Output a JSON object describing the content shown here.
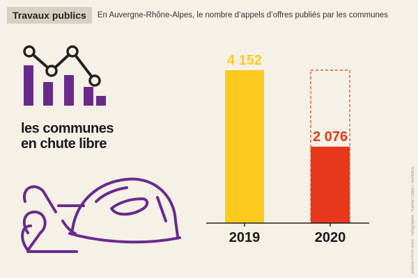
{
  "header": {
    "tag": "Travaux publics",
    "subtitle": "En Auvergne-Rhône-Alpes, le nombre d’appels d’offres publiés par les communes"
  },
  "caption": {
    "line1": "les communes",
    "line2": "en chute libre"
  },
  "source": "Source FRTP Aura · Infographie : Karine Collet / Territorial",
  "colors": {
    "background": "#f5f1e6",
    "bar_2019": "#fdcb1f",
    "bar_2020": "#e8381b",
    "icon": "#6a2a8c",
    "dashed_outline": "#e8381b"
  },
  "icons": [
    "line-chart-icon",
    "hard-hat-icon",
    "rolled-plan-icon"
  ],
  "chart_data": {
    "type": "bar",
    "categories": [
      "2019",
      "2020"
    ],
    "values": [
      4152,
      2076
    ],
    "value_labels": [
      "4 152",
      "2 076"
    ],
    "ylim": [
      0,
      4152
    ],
    "reference_outline": {
      "category": "2020",
      "value": 4152,
      "style": "dashed"
    },
    "grid": false,
    "legend": "none"
  }
}
